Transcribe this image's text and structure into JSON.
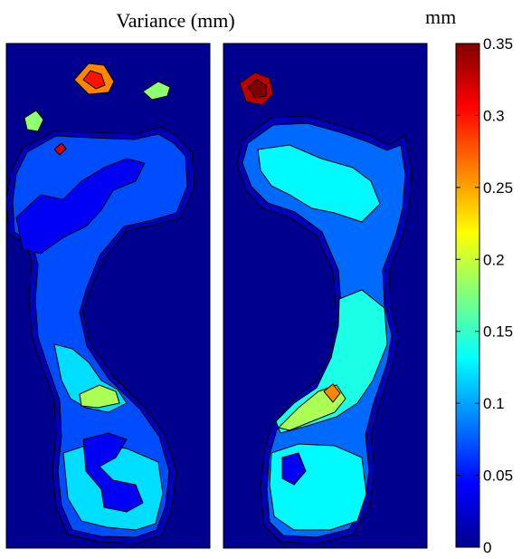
{
  "chart_data": {
    "type": "heatmap",
    "title": "Variance (mm)",
    "colorbar": {
      "label": "mm",
      "range": [
        0,
        0.35
      ],
      "ticks": [
        0,
        0.05,
        0.1,
        0.15,
        0.2,
        0.25,
        0.3,
        0.35
      ],
      "tick_labels": [
        "0",
        "0.05",
        "0.1",
        "0.15",
        "0.2",
        "0.25",
        "0.3",
        "0.35"
      ],
      "colormap": "jet"
    },
    "panels": [
      {
        "foot": "left",
        "background_value": 0,
        "regions": [
          {
            "zone": "foot-outline",
            "value": 0.02
          },
          {
            "zone": "foot-body",
            "value": 0.07
          },
          {
            "zone": "forefoot-low",
            "value": 0.04
          },
          {
            "zone": "midfoot-band",
            "value": 0.12
          },
          {
            "zone": "heel-mid",
            "value": 0.12
          },
          {
            "zone": "heel-low",
            "value": 0.04
          },
          {
            "zone": "arch-patch",
            "value": 0.19
          },
          {
            "zone": "big-toe",
            "value": 0.26
          },
          {
            "zone": "big-toe-core",
            "value": 0.3
          },
          {
            "zone": "toe-small",
            "value": 0.18
          },
          {
            "zone": "toe-dot",
            "value": 0.32
          }
        ]
      },
      {
        "foot": "right",
        "background_value": 0,
        "regions": [
          {
            "zone": "foot-outline",
            "value": 0.02
          },
          {
            "zone": "foot-body",
            "value": 0.08
          },
          {
            "zone": "forefoot-mid",
            "value": 0.13
          },
          {
            "zone": "arch-band",
            "value": 0.14
          },
          {
            "zone": "arch-high",
            "value": 0.19
          },
          {
            "zone": "heel-mid",
            "value": 0.13
          },
          {
            "zone": "heel-low",
            "value": 0.04
          },
          {
            "zone": "big-toe",
            "value": 0.33
          },
          {
            "zone": "big-toe-core",
            "value": 0.35
          },
          {
            "zone": "hot-spot",
            "value": 0.26
          }
        ]
      }
    ]
  }
}
